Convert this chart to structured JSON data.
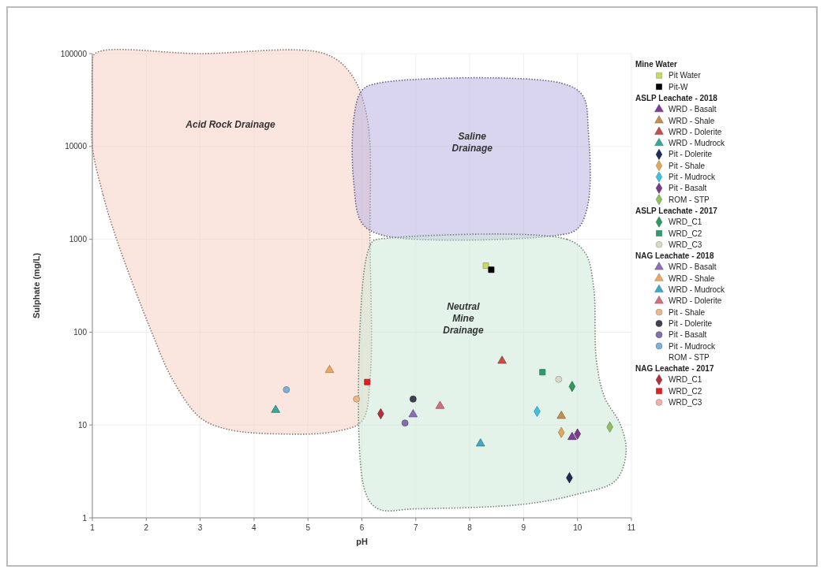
{
  "chart_data": {
    "type": "scatter",
    "xlabel": "pH",
    "ylabel": "Sulphate (mg/L)",
    "xlim": [
      1,
      11
    ],
    "xticks": [
      1,
      2,
      3,
      4,
      5,
      6,
      7,
      8,
      9,
      10,
      11
    ],
    "ylim": [
      1,
      100000
    ],
    "yticks": [
      1,
      10,
      100,
      1000,
      10000,
      100000
    ],
    "log": "y",
    "grid": true,
    "legend": "right",
    "annotations": [
      "Acid Rock Drainage",
      "Saline\nDrainage",
      "Neutral\nMine\nDrainage"
    ],
    "series": [
      {
        "type": "area",
        "color": "#f6cdbd",
        "line_style": "dotted",
        "x": [
          1,
          1.2,
          1.45,
          2.1,
          2.5,
          3,
          3.5,
          4.5,
          5.5,
          6.0,
          6.15,
          6.15,
          6.1,
          5.8,
          5.3,
          3,
          1.05,
          1,
          1
        ],
        "values": [
          10000,
          3000,
          1000,
          100,
          30,
          12,
          9,
          8,
          8.5,
          11,
          30,
          1000,
          20000,
          60000,
          100000,
          100000,
          100000,
          70000,
          30000
        ]
      },
      {
        "type": "area",
        "color": "#b3acdf",
        "line_style": "dotted",
        "x": [
          6.3,
          9.7,
          10.1,
          10.2,
          10.2,
          10.0,
          9.6,
          6.4,
          6.0,
          5.85,
          5.85,
          6.0
        ],
        "values": [
          48000,
          48000,
          35000,
          15000,
          2500,
          1300,
          1100,
          1100,
          1500,
          4000,
          20000,
          40000
        ]
      },
      {
        "type": "area",
        "color": "#c8e8d4",
        "line_style": "dotted",
        "x": [
          6.3,
          9.8,
          10.15,
          10.3,
          10.35,
          10.5,
          10.8,
          10.9,
          10.7,
          10,
          9,
          7,
          6.3,
          6.05,
          6.05,
          6.2
        ],
        "values": [
          1000,
          1000,
          700,
          300,
          50,
          20,
          10,
          5,
          2.5,
          1.8,
          1.4,
          1.25,
          1.25,
          2,
          500,
          950
        ]
      },
      {
        "name": "Mine Water"
      },
      {
        "name": "Pit Water",
        "color": "#c8d86a",
        "marker": "square",
        "x": [
          8.3
        ],
        "values": [
          520
        ]
      },
      {
        "name": "Pit-W",
        "color": "#000000",
        "marker": "square",
        "x": [
          8.4
        ],
        "values": [
          470
        ]
      },
      {
        "name": "ASLP Leachate - 2018"
      },
      {
        "name": "WRD - Basalt",
        "color": "#7b3f9a",
        "marker": "triangle",
        "x": [
          9.9
        ],
        "values": [
          7.4
        ]
      },
      {
        "name": "WRD - Shale",
        "color": "#c09050",
        "marker": "triangle",
        "x": [
          9.7
        ],
        "values": [
          12.5
        ]
      },
      {
        "name": "WRD - Dolerite",
        "color": "#c0504d",
        "marker": "triangle",
        "x": [
          8.6
        ],
        "values": [
          49
        ]
      },
      {
        "name": "WRD - Mudrock",
        "color": "#3aa59a",
        "marker": "triangle",
        "x": [
          4.4
        ],
        "values": [
          14.5
        ]
      },
      {
        "name": "Pit - Dolerite",
        "color": "#1f2a55",
        "marker": "diamond",
        "x": [
          9.85
        ],
        "values": [
          2.7
        ]
      },
      {
        "name": "Pit - Shale",
        "color": "#e0a860",
        "marker": "diamond",
        "x": [
          9.7
        ],
        "values": [
          8.3
        ]
      },
      {
        "name": "Pit - Mudrock",
        "color": "#40c0e0",
        "marker": "diamond",
        "x": [
          9.25
        ],
        "values": [
          14
        ]
      },
      {
        "name": "Pit - Basalt",
        "color": "#7a3a8a",
        "marker": "diamond",
        "x": [
          10
        ],
        "values": [
          8
        ]
      },
      {
        "name": "ROM - STP",
        "color": "#90c060",
        "marker": "diamond",
        "x": [
          10.6
        ],
        "values": [
          9.5
        ]
      },
      {
        "name": "ASLP Leachate - 2017"
      },
      {
        "name": "WRD_C1",
        "color": "#2e9a5e",
        "marker": "diamond",
        "x": [
          9.9
        ],
        "values": [
          26
        ]
      },
      {
        "name": "WRD_C2",
        "color": "#2e9a70",
        "marker": "square",
        "x": [
          9.35
        ],
        "values": [
          37
        ]
      },
      {
        "name": "WRD_C3",
        "color": "#d8d8c8",
        "marker": "circle",
        "x": [
          9.65
        ],
        "values": [
          31
        ]
      },
      {
        "name": "NAG Leachate - 2018"
      },
      {
        "name": "WRD - Basalt",
        "color": "#8a70b0",
        "marker": "triangle",
        "x": [
          6.95
        ],
        "values": [
          13
        ]
      },
      {
        "name": "WRD - Shale",
        "color": "#e8a868",
        "marker": "triangle",
        "x": [
          5.4
        ],
        "values": [
          39
        ]
      },
      {
        "name": "WRD - Mudrock",
        "color": "#40a8c8",
        "marker": "triangle",
        "x": [
          8.2
        ],
        "values": [
          6.3
        ]
      },
      {
        "name": "WRD - Dolerite",
        "color": "#d07080",
        "marker": "triangle",
        "x": [
          7.45
        ],
        "values": [
          16
        ]
      },
      {
        "name": "Pit - Shale",
        "color": "#e8b890",
        "marker": "circle",
        "x": [
          5.9
        ],
        "values": [
          19
        ]
      },
      {
        "name": "Pit - Dolerite",
        "color": "#404050",
        "marker": "circle",
        "x": [
          6.95
        ],
        "values": [
          19
        ]
      },
      {
        "name": "Pit - Basalt",
        "color": "#8070a8",
        "marker": "circle",
        "x": [
          6.8
        ],
        "values": [
          10.5
        ]
      },
      {
        "name": "Pit - Mudrock",
        "color": "#80b0d8",
        "marker": "circle",
        "x": [
          4.6
        ],
        "values": [
          24
        ]
      },
      {
        "name": "ROM - STP",
        "marker": "none"
      },
      {
        "name": "NAG Leachate - 2017"
      },
      {
        "name": "WRD_C1",
        "color": "#b03040",
        "marker": "diamond",
        "x": [
          6.35
        ],
        "values": [
          13.2
        ]
      },
      {
        "name": "WRD_C2",
        "color": "#e02020",
        "marker": "square",
        "x": [
          6.1
        ],
        "values": [
          29
        ]
      },
      {
        "name": "WRD_C3",
        "color": "#f0b0b0",
        "marker": "circle"
      }
    ]
  }
}
